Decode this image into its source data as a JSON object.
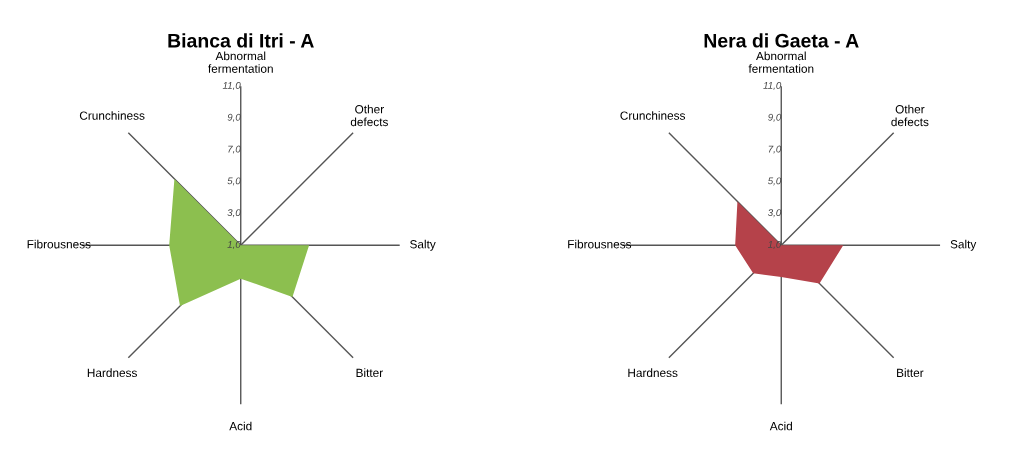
{
  "chart_data": [
    {
      "type": "radar",
      "title": "Bianca di Itri - A",
      "categories": [
        "Abnormal\nfermentation",
        "Other\ndefects",
        "Salty",
        "Bitter",
        "Acid",
        "Hardness",
        "Fibrousness",
        "Crunchiness"
      ],
      "series": [
        {
          "color": "#8cbf4f",
          "values": [
            1.0,
            1.0,
            5.3,
            5.6,
            3.1,
            6.4,
            5.5,
            6.9
          ]
        }
      ],
      "ylim": [
        1,
        11
      ],
      "yticks": [
        {
          "value": 1,
          "label": "1,0"
        },
        {
          "value": 3,
          "label": "3,0"
        },
        {
          "value": 5,
          "label": "5,0"
        },
        {
          "value": 7,
          "label": "7,0"
        },
        {
          "value": 9,
          "label": "9,0"
        },
        {
          "value": 11,
          "label": "11,0"
        }
      ],
      "grid": "x"
    },
    {
      "type": "radar",
      "title": "Nera di Gaeta - A",
      "categories": [
        "Abnormal\nfermentation",
        "Other\ndefects",
        "Salty",
        "Bitter",
        "Acid",
        "Hardness",
        "Fibrousness",
        "Crunchiness"
      ],
      "series": [
        {
          "color": "#b5424a",
          "values": [
            1.0,
            1.0,
            4.9,
            4.4,
            3.0,
            3.5,
            3.9,
            4.9
          ]
        }
      ],
      "ylim": [
        1,
        11
      ],
      "yticks": [
        {
          "value": 1,
          "label": "1,0"
        },
        {
          "value": 3,
          "label": "3,0"
        },
        {
          "value": 5,
          "label": "5,0"
        },
        {
          "value": 7,
          "label": "7,0"
        },
        {
          "value": 9,
          "label": "9,0"
        },
        {
          "value": 11,
          "label": "11,0"
        }
      ],
      "grid": "x"
    }
  ]
}
